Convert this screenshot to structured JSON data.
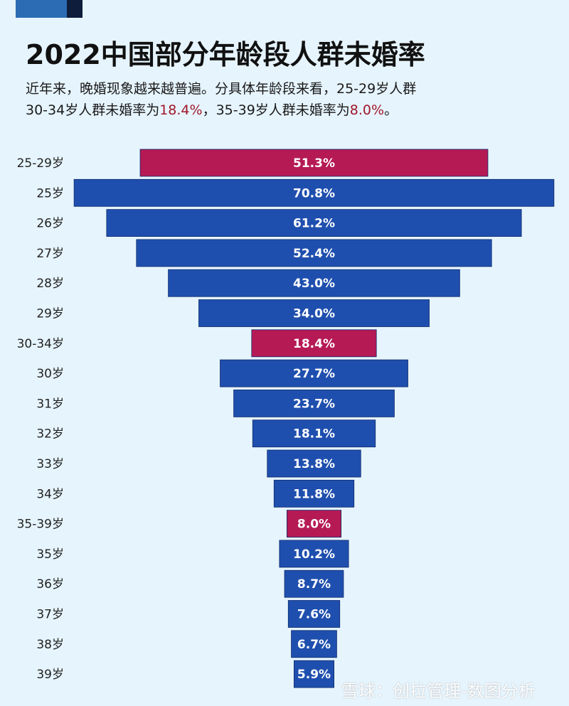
{
  "title": "2022中国部分年龄段人群未婚率",
  "subtitle": {
    "line1": "近年来，晚婚现象越来越普遍。分具体年龄段来看，25-29岁人群",
    "line2_prefix": "30-34岁人群未婚率为",
    "line2_value1": "18.4%",
    "line2_mid": "，35-39岁人群未婚率为",
    "line2_value2": "8.0%",
    "line2_suffix": "。"
  },
  "watermark": "雪球：创拉管理-数图分析",
  "colors": {
    "group": "#b51a55",
    "age": "#1f4fae",
    "highlight_text": "#a0182a"
  },
  "chart_data": {
    "type": "bar",
    "orientation": "horizontal-centered-funnel",
    "categories": [
      "25-29岁",
      "25岁",
      "26岁",
      "27岁",
      "28岁",
      "29岁",
      "30-34岁",
      "30岁",
      "31岁",
      "32岁",
      "33岁",
      "34岁",
      "35-39岁",
      "35岁",
      "36岁",
      "37岁",
      "38岁",
      "39岁"
    ],
    "values": [
      51.3,
      70.8,
      61.2,
      52.4,
      43.0,
      34.0,
      18.4,
      27.7,
      23.7,
      18.1,
      13.8,
      11.8,
      8.0,
      10.2,
      8.7,
      7.6,
      6.7,
      5.9
    ],
    "labels": [
      "51.3%",
      "70.8%",
      "61.2%",
      "52.4%",
      "43.0%",
      "34.0%",
      "18.4%",
      "27.7%",
      "23.7%",
      "18.1%",
      "13.8%",
      "11.8%",
      "8.0%",
      "10.2%",
      "8.7%",
      "7.6%",
      "6.7%",
      "5.9%"
    ],
    "group_rows": [
      "25-29岁",
      "30-34岁",
      "35-39岁"
    ],
    "unit": "%"
  }
}
